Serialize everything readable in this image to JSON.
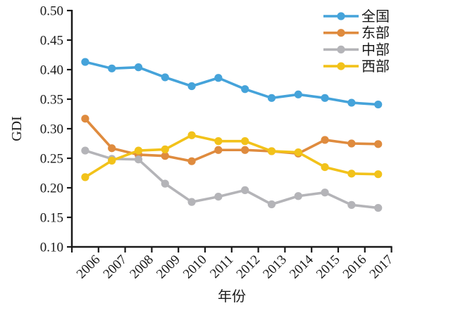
{
  "chart_data": {
    "type": "line",
    "title": "",
    "xlabel": "年份",
    "ylabel": "GDI",
    "categories": [
      "2006",
      "2007",
      "2008",
      "2009",
      "2010",
      "2011",
      "2012",
      "2013",
      "2014",
      "2015",
      "2016",
      "2017"
    ],
    "ylim": [
      0.1,
      0.5
    ],
    "ytick_step": 0.05,
    "yticks": [
      "0.50",
      "0.45",
      "0.40",
      "0.35",
      "0.30",
      "0.25",
      "0.20",
      "0.15",
      "0.10"
    ],
    "grid": false,
    "legend_position": "top-right",
    "axis_color": "#1a1a1a",
    "series": [
      {
        "name": "全国",
        "color": "#45A3DA",
        "values": [
          0.413,
          0.402,
          0.404,
          0.387,
          0.372,
          0.386,
          0.367,
          0.352,
          0.358,
          0.352,
          0.344,
          0.341
        ]
      },
      {
        "name": "东部",
        "color": "#DF8B3E",
        "values": [
          0.317,
          0.267,
          0.256,
          0.254,
          0.245,
          0.264,
          0.264,
          0.262,
          0.258,
          0.281,
          0.275,
          0.274
        ]
      },
      {
        "name": "中部",
        "color": "#B4B4B8",
        "values": [
          0.263,
          0.249,
          0.248,
          0.207,
          0.176,
          0.185,
          0.196,
          0.172,
          0.186,
          0.192,
          0.171,
          0.166
        ]
      },
      {
        "name": "西部",
        "color": "#F2C21A",
        "values": [
          0.218,
          0.246,
          0.263,
          0.265,
          0.289,
          0.279,
          0.279,
          0.262,
          0.26,
          0.235,
          0.224,
          0.223
        ]
      }
    ]
  }
}
